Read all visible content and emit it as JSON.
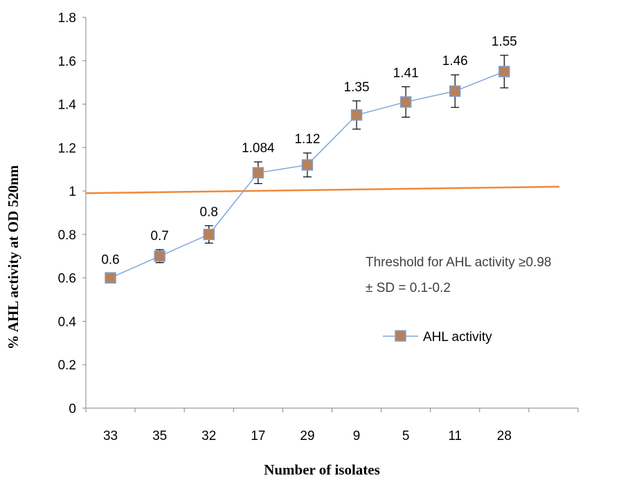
{
  "chart_data": {
    "type": "line",
    "categories": [
      "33",
      "35",
      "32",
      "17",
      "29",
      "9",
      "5",
      "11",
      "28"
    ],
    "series": [
      {
        "name": "AHL activity",
        "values": [
          0.6,
          0.7,
          0.8,
          1.084,
          1.12,
          1.35,
          1.41,
          1.46,
          1.55
        ],
        "data_labels": [
          "0.6",
          "0.7",
          "0.8",
          "1.084",
          "1.12",
          "1.35",
          "1.41",
          "1.46",
          "1.55"
        ],
        "error": [
          0.02,
          0.03,
          0.04,
          0.05,
          0.055,
          0.065,
          0.07,
          0.075,
          0.075
        ],
        "line_color": "#7ea6d8",
        "marker_color": "#b8815a",
        "marker_edge_color": "#7f9fcf"
      }
    ],
    "threshold_line": {
      "y_start": 0.99,
      "y_end": 1.02,
      "color": "#f0883a"
    },
    "xlabel": "Number of isolates",
    "ylabel": "% AHL activity at OD 520nm",
    "ylim": [
      0,
      1.8
    ],
    "yticks": [
      "0",
      "0.2",
      "0.4",
      "0.6",
      "0.8",
      "1",
      "1.2",
      "1.4",
      "1.6",
      "1.8"
    ],
    "grid": false,
    "legend_position": "right",
    "annotation": {
      "line1": "Threshold for AHL activity ≥0.98",
      "line2": "± SD = 0.1-0.2"
    }
  }
}
